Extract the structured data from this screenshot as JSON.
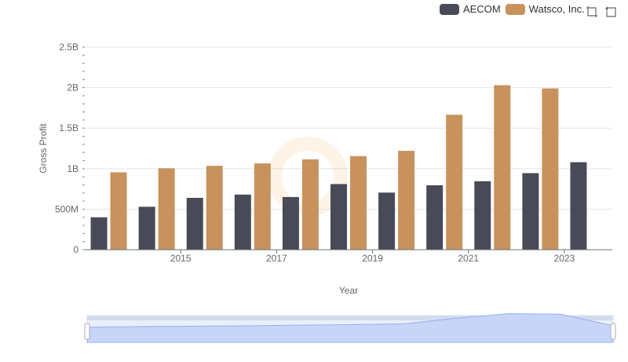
{
  "legend": {
    "items": [
      {
        "name": "AECOM",
        "color": "#494a57"
      },
      {
        "name": "Watsco, Inc.",
        "color": "#c8925c"
      }
    ]
  },
  "toolbox": {
    "icons": [
      "zoom-icon",
      "restore-icon"
    ]
  },
  "chart_data": {
    "type": "bar",
    "categories": [
      "2014",
      "2015",
      "2016",
      "2017",
      "2018",
      "2019",
      "2020",
      "2021",
      "2022",
      "2023",
      "2024"
    ],
    "x_tick_labels": [
      "2015",
      "2017",
      "2019",
      "2021",
      "2023"
    ],
    "series": [
      {
        "name": "AECOM",
        "color": "#494a57",
        "values": [
          400000000,
          530000000,
          640000000,
          680000000,
          650000000,
          810000000,
          705000000,
          795000000,
          845000000,
          945000000,
          1080000000
        ]
      },
      {
        "name": "Watsco, Inc.",
        "color": "#c8925c",
        "values": [
          955000000,
          1005000000,
          1035000000,
          1065000000,
          1115000000,
          1155000000,
          1220000000,
          1665000000,
          2030000000,
          1990000000,
          null
        ]
      }
    ],
    "xlabel": "Year",
    "ylabel": "Gross Profit",
    "ylim": [
      0,
      2500000000
    ],
    "y_ticks": [
      0,
      500000000,
      1000000000,
      1500000000,
      2000000000,
      2500000000
    ],
    "y_tick_labels": [
      "0",
      "500M",
      "1B",
      "1.5B",
      "2B",
      "2.5B"
    ],
    "grid": true,
    "legend_position": "top-right",
    "data_zoom": {
      "start": 0,
      "end": 100
    }
  }
}
